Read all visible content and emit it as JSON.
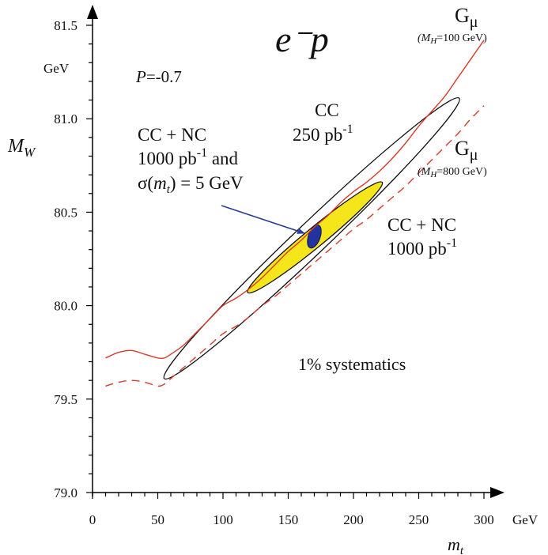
{
  "chart_data": {
    "type": "line",
    "title": "e⁻p",
    "xlabel": "m_t",
    "ylabel": "M_W",
    "x_unit": "GeV",
    "y_unit": "GeV",
    "xlim": [
      0,
      310
    ],
    "ylim": [
      79.0,
      81.6
    ],
    "x_ticks": [
      "0",
      "50",
      "100",
      "150",
      "200",
      "250",
      "300"
    ],
    "x_tick_values": [
      0,
      50,
      100,
      150,
      200,
      250,
      300
    ],
    "y_ticks": [
      "79.0",
      "79.5",
      "80.0",
      "80.5",
      "81.0",
      "81.5"
    ],
    "y_tick_values": [
      79.0,
      79.5,
      80.0,
      80.5,
      81.0,
      81.5
    ],
    "polarization": {
      "symbol": "P",
      "value": "=-0.7"
    },
    "series": [
      {
        "name": "Gμ (MH=100 GeV)",
        "style": "solid",
        "color": "#d93a2b",
        "x": [
          10,
          20,
          30,
          40,
          50,
          55,
          60,
          70,
          80,
          90,
          100,
          110,
          120,
          130,
          140,
          150,
          160,
          170,
          180,
          190,
          200,
          210,
          220,
          230,
          240,
          250,
          260,
          270,
          280,
          290,
          300
        ],
        "y": [
          79.72,
          79.75,
          79.76,
          79.74,
          79.72,
          79.72,
          79.74,
          79.79,
          79.86,
          79.93,
          80.0,
          80.04,
          80.09,
          80.15,
          80.22,
          80.29,
          80.35,
          80.42,
          80.48,
          80.55,
          80.61,
          80.66,
          80.72,
          80.79,
          80.87,
          80.96,
          81.04,
          81.12,
          81.22,
          81.32,
          81.42
        ]
      },
      {
        "name": "Gμ (MH=800 GeV)",
        "style": "dashed",
        "color": "#d93a2b",
        "x": [
          10,
          20,
          30,
          40,
          50,
          55,
          60,
          70,
          80,
          90,
          100,
          110,
          120,
          130,
          140,
          150,
          160,
          170,
          180,
          190,
          200,
          210,
          220,
          230,
          240,
          250,
          260,
          270,
          280,
          290,
          300
        ],
        "y": [
          79.57,
          79.59,
          79.6,
          79.59,
          79.57,
          79.58,
          79.61,
          79.67,
          79.73,
          79.79,
          79.85,
          79.89,
          79.94,
          80.0,
          80.05,
          80.11,
          80.17,
          80.23,
          80.29,
          80.35,
          80.41,
          80.46,
          80.52,
          80.58,
          80.64,
          80.71,
          80.78,
          80.85,
          80.92,
          81.0,
          81.07
        ]
      }
    ],
    "ellipses": [
      {
        "name": "CC 250 pb-1",
        "center": [
          168,
          80.36
        ],
        "tip_low": [
          55,
          79.61
        ],
        "tip_high": [
          281,
          81.11
        ],
        "minor_half": 9,
        "fill": "none",
        "stroke": "#111111"
      },
      {
        "name": "CC + NC 1000 pb-1",
        "center": [
          170.5,
          80.37
        ],
        "tip_low": [
          119,
          80.07
        ],
        "tip_high": [
          222,
          80.66
        ],
        "minor_half": 5.5,
        "fill": "#f5e61c",
        "stroke": "#111111"
      },
      {
        "name": "CC + NC 1000 pb-1 and σ(mt) = 5 GeV",
        "center": [
          170,
          80.37
        ],
        "rx_data": 4.5,
        "ry_data": 0.065,
        "fill": "#2233a0",
        "stroke": "#0a1260"
      }
    ],
    "annotations": {
      "gmu_label_1": {
        "main": "G",
        "sub": "μ",
        "paren": "(M",
        "paren_sub": "H",
        "paren_rest": "=100 GeV)"
      },
      "gmu_label_2": {
        "main": "G",
        "sub": "μ",
        "paren": "(M",
        "paren_sub": "H",
        "paren_rest": "=800 GeV)"
      },
      "cc_label": {
        "line1": "CC",
        "line2": "250 pb",
        "line2_sup": "-1"
      },
      "ccnc_label": {
        "line1": "CC + NC",
        "line2": "1000 pb",
        "line2_sup": "-1"
      },
      "ccnc_mt_label": {
        "line1": "CC + NC",
        "line2": "1000 pb",
        "line2_sup": "-1",
        "line2_rest": " and",
        "line3": "σ(",
        "line3_var": "m",
        "line3_sub": "t",
        "line3_rest": ") = 5 GeV"
      },
      "systematics": "1% systematics"
    },
    "colors": {
      "curve": "#d93a2b",
      "arrow": "#2a3ea0",
      "yellow": "#f5e61c",
      "blue": "#2233a0",
      "axis": "#000000"
    }
  }
}
